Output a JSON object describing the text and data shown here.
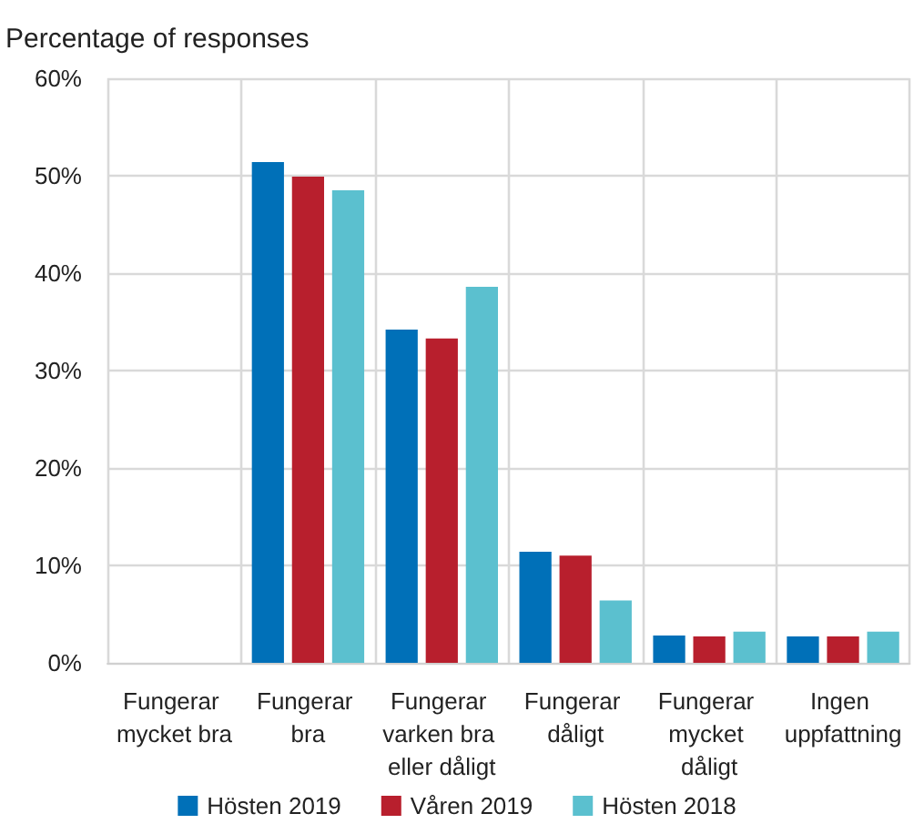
{
  "chart_data": {
    "type": "bar",
    "ylabel": "Percentage of responses",
    "categories": [
      "Fungerar mycket bra",
      "Fungerar bra",
      "Fungerar varken bra eller dåligt",
      "Fungerar dåligt",
      "Fungerar mycket dåligt",
      "Ingen uppfattning"
    ],
    "series": [
      {
        "name": "Hösten 2019",
        "color": "#0070b8",
        "values": [
          0,
          51.4,
          34.2,
          11.4,
          2.8,
          2.7
        ]
      },
      {
        "name": "Våren 2019",
        "color": "#b81f2d",
        "values": [
          0,
          49.9,
          33.3,
          11.0,
          2.7,
          2.7
        ]
      },
      {
        "name": "Hösten 2018",
        "color": "#5bc0cf",
        "values": [
          0,
          48.5,
          38.6,
          6.4,
          3.2,
          3.2
        ]
      }
    ],
    "ylim": [
      0,
      60
    ],
    "yticks": [
      {
        "value": 0,
        "label": "0%"
      },
      {
        "value": 10,
        "label": "10%"
      },
      {
        "value": 20,
        "label": "20%"
      },
      {
        "value": 30,
        "label": "30%"
      },
      {
        "value": 40,
        "label": "40%"
      },
      {
        "value": 50,
        "label": "50%"
      },
      {
        "value": 60,
        "label": "60%"
      }
    ],
    "grid": true,
    "legend": "bottom"
  }
}
